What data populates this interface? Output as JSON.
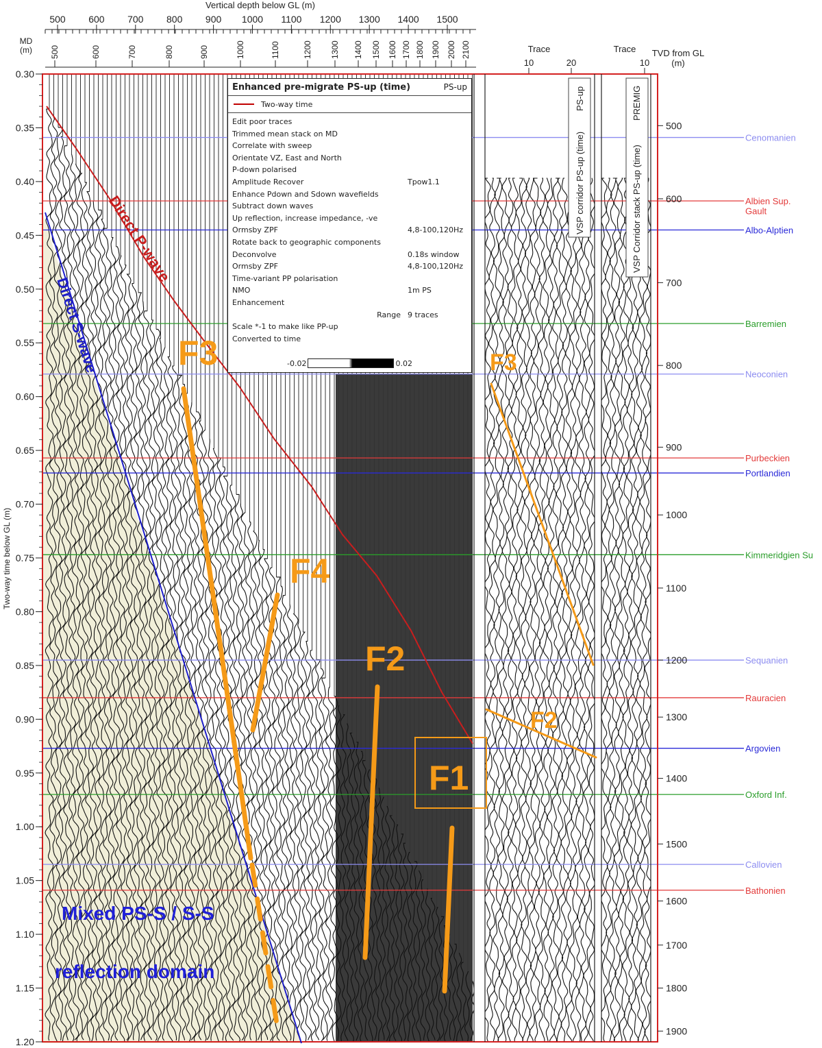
{
  "chart_data": {
    "type": "seismic-vsp",
    "xlabel_top": "Vertical depth below GL (m)",
    "top_depth_ticks": [
      500,
      600,
      700,
      800,
      900,
      1000,
      1100,
      1200,
      1300,
      1400,
      1500
    ],
    "md_label": "MD\n(m)",
    "md_ticks": [
      "500",
      "600",
      "700",
      "800",
      "900",
      "1000",
      "1100",
      "1200",
      "1300",
      "1400",
      "1500",
      "1600",
      "1700",
      "1800",
      "1900",
      "2000",
      "2100"
    ],
    "ylabel": "Two-way time below GL (m)",
    "yticks": [
      "0.30",
      "0.35",
      "0.40",
      "0.45",
      "0.50",
      "0.55",
      "0.60",
      "0.65",
      "0.70",
      "0.75",
      "0.80",
      "0.85",
      "0.90",
      "0.95",
      "1.00",
      "1.05",
      "1.10",
      "1.15",
      "1.20"
    ],
    "ylim": [
      0.3,
      1.2
    ],
    "right_axis_label": "TVD from GL\n(m)",
    "right_ticks": [
      {
        "label": "500",
        "t": 0.348
      },
      {
        "label": "600",
        "t": 0.416
      },
      {
        "label": "700",
        "t": 0.494
      },
      {
        "label": "800",
        "t": 0.571
      },
      {
        "label": "900",
        "t": 0.647
      },
      {
        "label": "1000",
        "t": 0.71
      },
      {
        "label": "1100",
        "t": 0.778
      },
      {
        "label": "1200",
        "t": 0.845
      },
      {
        "label": "1300",
        "t": 0.898
      },
      {
        "label": "1400",
        "t": 0.955
      },
      {
        "label": "1500",
        "t": 1.016
      },
      {
        "label": "1600",
        "t": 1.069
      },
      {
        "label": "1700",
        "t": 1.11
      },
      {
        "label": "1800",
        "t": 1.15
      },
      {
        "label": "1900",
        "t": 1.19
      }
    ],
    "horizons": [
      {
        "name": "Cenomanien",
        "t": 0.359,
        "color": "#8c8cf0"
      },
      {
        "name": "Albien Sup.\nGault",
        "t": 0.418,
        "color": "#e33a3a"
      },
      {
        "name": "Albo-Alptien",
        "t": 0.445,
        "color": "#2a2ad8"
      },
      {
        "name": "Barremien",
        "t": 0.532,
        "color": "#2a9d2a"
      },
      {
        "name": "Neoconien",
        "t": 0.579,
        "color": "#8c8cf0"
      },
      {
        "name": "Purbeckien",
        "t": 0.657,
        "color": "#e33a3a"
      },
      {
        "name": "Portlandien",
        "t": 0.671,
        "color": "#2a2ad8"
      },
      {
        "name": "Kimmeridgien Su",
        "t": 0.747,
        "color": "#2a9d2a"
      },
      {
        "name": "Sequanien",
        "t": 0.845,
        "color": "#8c8cf0"
      },
      {
        "name": "Rauracien",
        "t": 0.88,
        "color": "#e33a3a"
      },
      {
        "name": "Argovien",
        "t": 0.927,
        "color": "#2a2ad8"
      },
      {
        "name": "Oxford Inf.",
        "t": 0.97,
        "color": "#2a9d2a"
      },
      {
        "name": "Callovien",
        "t": 1.035,
        "color": "#8c8cf0"
      },
      {
        "name": "Bathonien",
        "t": 1.059,
        "color": "#e33a3a"
      }
    ],
    "trace_panels": [
      {
        "title": "Trace",
        "ticks": [
          "10",
          "20"
        ],
        "label": "VSP corridor PS-up (time)",
        "sublabel": "PS-up"
      },
      {
        "title": "Trace",
        "ticks": [
          "10"
        ],
        "label": "VSP Corridor stack PS-up (time)",
        "sublabel": "PREMIG"
      }
    ],
    "annotations": {
      "direct_p": "Direct P-wave",
      "direct_s": "Direct S-wave",
      "domain_line1": "Mixed PS-S / S-S",
      "domain_line2": "reflection domain",
      "faults": [
        "F3",
        "F4",
        "F2",
        "F1",
        "F3",
        "F2"
      ]
    },
    "colors": {
      "p_wave": "#c81e1e",
      "s_wave": "#1e1ec8",
      "fault": "#f59a18",
      "frame": "#d42020",
      "domain_text": "#2020d8"
    }
  },
  "process_panel": {
    "title": "Enhanced pre-migrate PS-up (time)",
    "tag": "PS-up",
    "legend": "Two-way time",
    "steps": [
      {
        "name": "Edit poor traces",
        "value": ""
      },
      {
        "name": "Trimmed mean stack on MD",
        "value": ""
      },
      {
        "name": "Correlate with sweep",
        "value": ""
      },
      {
        "name": "Orientate VZ, East and North",
        "value": ""
      },
      {
        "name": "P-down polarised",
        "value": ""
      },
      {
        "name": "Amplitude Recover",
        "value": "Tpow1.1"
      },
      {
        "name": "Enhance Pdown and Sdown wavefields",
        "value": ""
      },
      {
        "name": "Subtract down waves",
        "value": ""
      },
      {
        "name": "Up reflection, increase impedance, -ve",
        "value": ""
      },
      {
        "name": "Ormsby ZPF",
        "value": "4,8-100,120Hz"
      },
      {
        "name": "Rotate back to geographic components",
        "value": ""
      },
      {
        "name": "Deconvolve",
        "value": "0.18s window"
      },
      {
        "name": "Ormsby ZPF",
        "value": "4,8-100,120Hz"
      },
      {
        "name": "Time-variant PP polarisation",
        "value": ""
      },
      {
        "name": "NMO",
        "value": "1m PS"
      },
      {
        "name": "Enhancement",
        "value": ""
      },
      {
        "name": "Range",
        "value": "9  traces"
      },
      {
        "name": "Scale *-1 to make like PP-up",
        "value": ""
      },
      {
        "name": "Converted to time",
        "value": ""
      }
    ],
    "scale_min": "-0.02",
    "scale_max": "0.02"
  }
}
